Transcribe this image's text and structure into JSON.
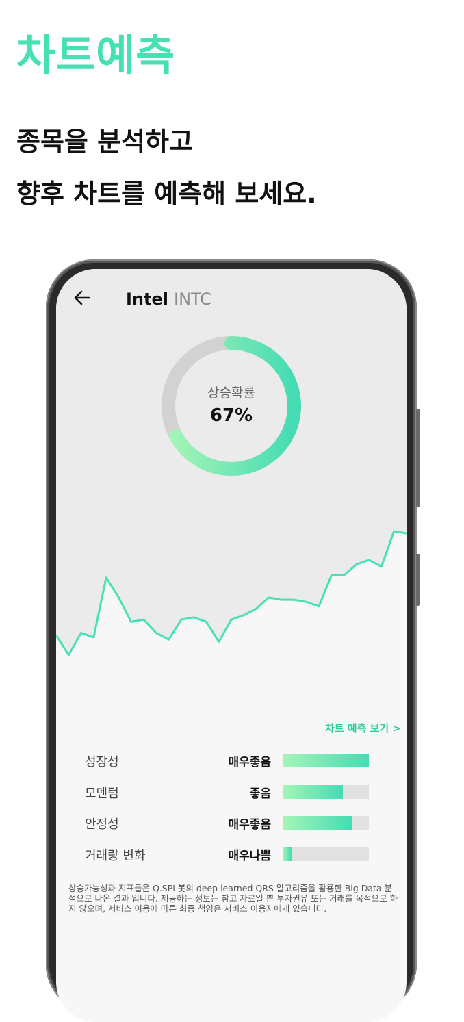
{
  "promo": {
    "title": "차트예측",
    "subtitle_line1": "종목을 분석하고",
    "subtitle_line2": "향후 차트를 예측해 보세요."
  },
  "header": {
    "back_icon": "arrow-left-icon",
    "company": "Intel",
    "ticker": "INTC"
  },
  "probability": {
    "label": "상승확률",
    "value_text": "67%",
    "value": 67
  },
  "price_series": [
    79,
    70,
    80,
    78,
    105,
    96,
    85,
    86,
    80,
    77,
    86,
    87,
    85,
    76,
    86,
    88,
    91,
    96,
    95,
    95,
    94,
    92,
    106,
    106,
    111,
    113,
    110,
    126,
    125
  ],
  "forecast_link": "차트 예측 보기 >",
  "metrics": [
    {
      "label": "성장성",
      "grade": "매우좋음",
      "level": 1.0
    },
    {
      "label": "모멘텀",
      "grade": "좋음",
      "level": 0.7
    },
    {
      "label": "안정성",
      "grade": "매우좋음",
      "level": 0.8
    },
    {
      "label": "거래량 변화",
      "grade": "매우나쁨",
      "level": 0.1
    }
  ],
  "disclaimer": "상승가능성과 지표들은 Q.SPI 봇의 deep learned QRS 알고리즘을 활용한 Big Data 분석으로 나온 결과 입니다. 제공하는 정보는 참고 자료일 뿐 투자권유 또는 거래를 목적으로 하지 않으며, 서비스 이용에 따른 최종 책임은 서비스 이용자에게 있습니다.",
  "colors": {
    "accent": "#45e0b4",
    "gradient_start": "#a6f5b6",
    "gradient_end": "#45dbb4",
    "track": "#d2d2d2"
  }
}
